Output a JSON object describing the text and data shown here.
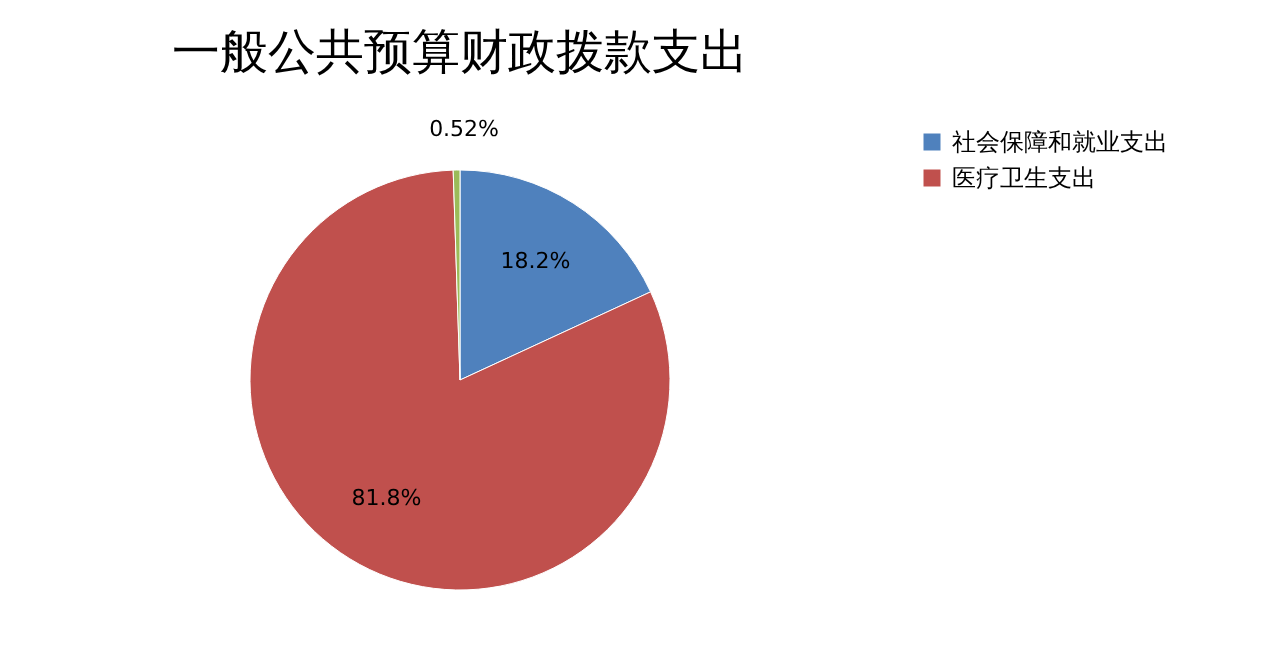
{
  "chart_data": {
    "type": "pie",
    "title": "一般公共预算财政拨款支出",
    "categories": [
      "社会保障和就业支出",
      "医疗卫生支出",
      null
    ],
    "values": [
      18.2,
      81.8,
      0.52
    ],
    "colors": [
      "#4f81bd",
      "#c0504d",
      "#9bbb59"
    ],
    "value_labels": [
      "18.2%",
      "81.8%",
      "0.52%"
    ],
    "legend": "right"
  }
}
